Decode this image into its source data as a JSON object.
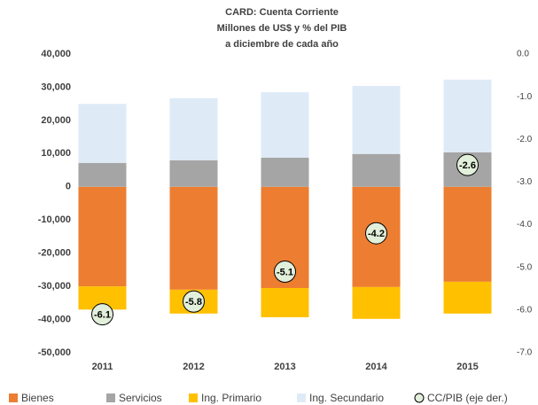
{
  "chart_data": {
    "type": "bar",
    "title": "CARD: Cuenta Corriente",
    "subtitle": [
      "Millones de US$ y % del PIB",
      "a diciembre de cada año"
    ],
    "categories": [
      "2011",
      "2012",
      "2013",
      "2014",
      "2015"
    ],
    "series": [
      {
        "name": "Bienes",
        "color": "#ed7d31",
        "values": [
          -30000,
          -31000,
          -30500,
          -30200,
          -28600
        ]
      },
      {
        "name": "Servicios",
        "color": "#a5a5a5",
        "values": [
          7200,
          8000,
          8800,
          9900,
          10400
        ]
      },
      {
        "name": "Ing. Primario",
        "color": "#ffc000",
        "values": [
          -7000,
          -7200,
          -8800,
          -9600,
          -9600
        ]
      },
      {
        "name": "Ing. Secundario",
        "color": "#deebf7",
        "values": [
          17800,
          18700,
          19700,
          20500,
          21900
        ]
      },
      {
        "name": "CC/PIB (eje der.)",
        "color": "#e2efda",
        "type": "scatter",
        "axis": "y2",
        "values": [
          -6.1,
          -5.8,
          -5.1,
          -4.2,
          -2.6
        ]
      }
    ],
    "ylim": [
      -50000,
      40000
    ],
    "yticks": [
      {
        "value": -50000,
        "label": "-50,000"
      },
      {
        "value": -40000,
        "label": "-40,000"
      },
      {
        "value": -30000,
        "label": "-30,000"
      },
      {
        "value": -20000,
        "label": "-20,000"
      },
      {
        "value": -10000,
        "label": "-10,000"
      },
      0,
      {
        "value": 10000,
        "label": "10,000"
      },
      {
        "value": 20000,
        "label": "20,000"
      },
      {
        "value": 30000,
        "label": "30,000"
      },
      {
        "value": 40000,
        "label": "40,000"
      }
    ],
    "y2lim": [
      -7,
      0
    ],
    "y2ticks": [
      {
        "value": 0,
        "label": "0.0"
      },
      {
        "value": -1,
        "label": "-1.0"
      },
      {
        "value": -2,
        "label": "-2.0"
      },
      {
        "value": -3,
        "label": "-3.0"
      },
      {
        "value": -4,
        "label": "-4.0"
      },
      {
        "value": -5,
        "label": "-5.0"
      },
      {
        "value": -6,
        "label": "-6.0"
      },
      {
        "value": -7,
        "label": "-7.0"
      }
    ],
    "legend": "bottom"
  }
}
